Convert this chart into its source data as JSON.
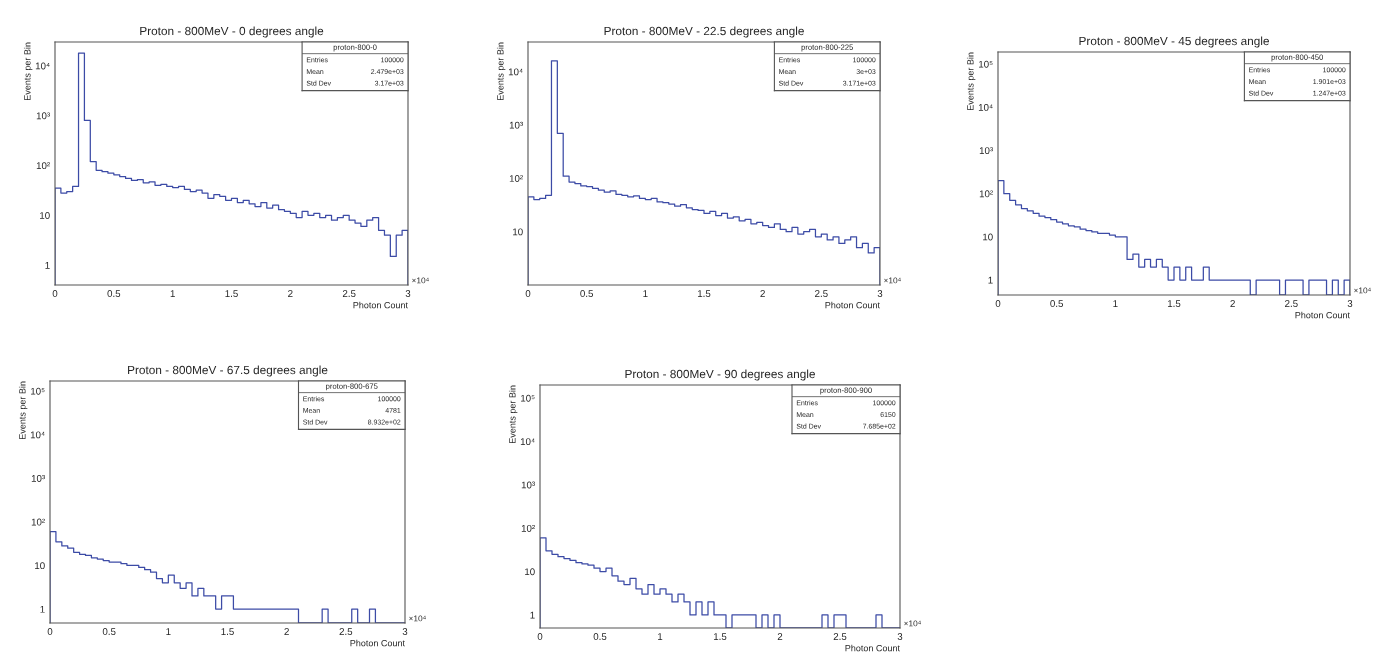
{
  "chart_data": [
    {
      "type": "histogram",
      "title": "Proton - 800MeV - 0 degrees angle",
      "xlabel": "Photon Count",
      "ylabel": "Events per Bin",
      "log": "y",
      "color": "#3c4ba6",
      "bins": [
        0,
        0.05,
        0.1,
        0.15,
        0.2,
        0.25,
        0.3,
        0.35,
        0.4,
        0.45,
        0.5,
        0.55,
        0.6,
        0.65,
        0.7,
        0.75,
        0.8,
        0.85,
        0.9,
        0.95,
        1,
        1.05,
        1.1,
        1.15,
        1.2,
        1.25,
        1.3,
        1.35,
        1.4,
        1.45,
        1.5,
        1.55,
        1.6,
        1.65,
        1.7,
        1.75,
        1.8,
        1.85,
        1.9,
        1.95,
        2,
        2.05,
        2.1,
        2.15,
        2.2,
        2.25,
        2.3,
        2.35,
        2.4,
        2.45,
        2.5,
        2.55,
        2.6,
        2.65,
        2.7,
        2.75,
        2.8,
        2.85,
        2.9,
        2.95,
        3
      ],
      "values": [
        35,
        28,
        30,
        38,
        18000,
        800,
        120,
        80,
        75,
        70,
        65,
        60,
        55,
        50,
        52,
        45,
        47,
        40,
        42,
        38,
        36,
        38,
        33,
        30,
        32,
        28,
        22,
        26,
        24,
        20,
        22,
        18,
        20,
        17,
        15,
        18,
        14,
        16,
        13,
        12,
        11,
        9,
        12,
        10,
        11,
        9,
        10,
        8,
        9,
        10,
        8,
        7,
        6,
        8,
        9,
        5,
        4,
        1.5,
        4,
        5
      ],
      "xlim": [
        0,
        3
      ],
      "xticks": [
        0,
        0.5,
        1,
        1.5,
        2,
        2.5,
        3
      ],
      "ylim": [
        0.4,
        30000
      ],
      "yticks": [
        1,
        10,
        {
          "value": 100,
          "label": "10²"
        },
        {
          "value": 1000,
          "label": "10³"
        },
        {
          "value": 10000,
          "label": "10⁴"
        }
      ],
      "annotations": [
        "proton-800-0",
        "Entries",
        "100000",
        "Mean",
        "2.479e+03",
        "Std Dev",
        "3.17e+03",
        "×10⁴"
      ]
    },
    {
      "type": "histogram",
      "title": "Proton - 800MeV - 22.5 degrees angle",
      "xlabel": "Photon Count",
      "ylabel": "Events per Bin",
      "log": "y",
      "color": "#3c4ba6",
      "bins": [
        0,
        0.05,
        0.1,
        0.15,
        0.2,
        0.25,
        0.3,
        0.35,
        0.4,
        0.45,
        0.5,
        0.55,
        0.6,
        0.65,
        0.7,
        0.75,
        0.8,
        0.85,
        0.9,
        0.95,
        1,
        1.05,
        1.1,
        1.15,
        1.2,
        1.25,
        1.3,
        1.35,
        1.4,
        1.45,
        1.5,
        1.55,
        1.6,
        1.65,
        1.7,
        1.75,
        1.8,
        1.85,
        1.9,
        1.95,
        2,
        2.05,
        2.1,
        2.15,
        2.2,
        2.25,
        2.3,
        2.35,
        2.4,
        2.45,
        2.5,
        2.55,
        2.6,
        2.65,
        2.7,
        2.75,
        2.8,
        2.85,
        2.9,
        2.95,
        3
      ],
      "values": [
        45,
        40,
        42,
        48,
        16000,
        700,
        110,
        85,
        80,
        72,
        70,
        65,
        60,
        55,
        58,
        50,
        48,
        45,
        47,
        42,
        40,
        42,
        36,
        35,
        33,
        30,
        32,
        28,
        26,
        25,
        22,
        24,
        20,
        22,
        18,
        19,
        16,
        17,
        14,
        15,
        13,
        12,
        14,
        11,
        10,
        12,
        9,
        10,
        11,
        8,
        9,
        7,
        8,
        6,
        7,
        8,
        5,
        6,
        4,
        5
      ],
      "xlim": [
        0,
        3
      ],
      "xticks": [
        0,
        0.5,
        1,
        1.5,
        2,
        2.5,
        3
      ],
      "ylim": [
        1,
        36000
      ],
      "yticks": [
        10,
        {
          "value": 100,
          "label": "10²"
        },
        {
          "value": 1000,
          "label": "10³"
        },
        {
          "value": 10000,
          "label": "10⁴"
        }
      ],
      "annotations": [
        "proton-800-225",
        "Entries",
        "100000",
        "Mean",
        "3e+03",
        "Std Dev",
        "3.171e+03",
        "×10⁴"
      ]
    },
    {
      "type": "histogram",
      "title": "Proton - 800MeV - 45 degrees angle",
      "xlabel": "Photon Count",
      "ylabel": "Events per Bin",
      "log": "y",
      "color": "#3c4ba6",
      "bins": [
        0,
        0.05,
        0.1,
        0.15,
        0.2,
        0.25,
        0.3,
        0.35,
        0.4,
        0.45,
        0.5,
        0.55,
        0.6,
        0.65,
        0.7,
        0.75,
        0.8,
        0.85,
        0.9,
        0.95,
        1,
        1.05,
        1.1,
        1.15,
        1.2,
        1.25,
        1.3,
        1.35,
        1.4,
        1.45,
        1.5,
        1.55,
        1.6,
        1.65,
        1.7,
        1.75,
        1.8,
        1.85,
        1.9,
        1.95,
        2,
        2.05,
        2.1,
        2.15,
        2.2,
        2.25,
        2.3,
        2.35,
        2.4,
        2.45,
        2.5,
        2.55,
        2.6,
        2.65,
        2.7,
        2.75,
        2.8,
        2.85,
        2.9,
        2.95,
        3
      ],
      "values": [
        200,
        100,
        70,
        55,
        45,
        40,
        35,
        30,
        28,
        25,
        22,
        20,
        18,
        17,
        15,
        14,
        13,
        12,
        12,
        11,
        10,
        10,
        3,
        4,
        2,
        3,
        2,
        3,
        2,
        1,
        2,
        1,
        2,
        1,
        1,
        2,
        1,
        1,
        1,
        1,
        1,
        1,
        1,
        null,
        1,
        1,
        1,
        1,
        null,
        1,
        1,
        1,
        null,
        1,
        1,
        1,
        null,
        1,
        null,
        1
      ],
      "xlim": [
        0,
        3
      ],
      "xticks": [
        0,
        0.5,
        1,
        1.5,
        2,
        2.5,
        3
      ],
      "ylim": [
        0.45,
        190000
      ],
      "yticks": [
        1,
        10,
        {
          "value": 100,
          "label": "10²"
        },
        {
          "value": 1000,
          "label": "10³"
        },
        {
          "value": 10000,
          "label": "10⁴"
        },
        {
          "value": 100000,
          "label": "10⁵"
        }
      ],
      "annotations": [
        "proton-800-450",
        "Entries",
        "100000",
        "Mean",
        "1.901e+03",
        "Std Dev",
        "1.247e+03",
        "×10⁴"
      ]
    },
    {
      "type": "histogram",
      "title": "Proton - 800MeV - 67.5 degrees angle",
      "xlabel": "Photon Count",
      "ylabel": "Events per Bin",
      "log": "y",
      "color": "#3c4ba6",
      "bins": [
        0,
        0.05,
        0.1,
        0.15,
        0.2,
        0.25,
        0.3,
        0.35,
        0.4,
        0.45,
        0.5,
        0.55,
        0.6,
        0.65,
        0.7,
        0.75,
        0.8,
        0.85,
        0.9,
        0.95,
        1,
        1.05,
        1.1,
        1.15,
        1.2,
        1.25,
        1.3,
        1.35,
        1.4,
        1.45,
        1.5,
        1.55,
        1.6,
        1.65,
        1.7,
        1.75,
        1.8,
        1.85,
        1.9,
        1.95,
        2,
        2.05,
        2.1,
        2.15,
        2.2,
        2.25,
        2.3,
        2.35,
        2.4,
        2.45,
        2.5,
        2.55,
        2.6,
        2.65,
        2.7,
        2.75,
        2.8,
        2.85,
        2.9,
        2.95,
        3
      ],
      "values": [
        60,
        35,
        28,
        25,
        20,
        18,
        17,
        15,
        14,
        13,
        12,
        12,
        11,
        10,
        10,
        9,
        8,
        7,
        5,
        4,
        6,
        4,
        3,
        4,
        2,
        3,
        2,
        2,
        1,
        2,
        2,
        1,
        1,
        1,
        1,
        1,
        1,
        1,
        1,
        1,
        1,
        1,
        null,
        null,
        null,
        null,
        1,
        null,
        null,
        null,
        null,
        1,
        null,
        null,
        1,
        null,
        null,
        null,
        null,
        null
      ],
      "xlim": [
        0,
        3
      ],
      "xticks": [
        0,
        0.5,
        1,
        1.5,
        2,
        2.5,
        3
      ],
      "ylim": [
        0.48,
        170000
      ],
      "yticks": [
        1,
        10,
        {
          "value": 100,
          "label": "10²"
        },
        {
          "value": 1000,
          "label": "10³"
        },
        {
          "value": 10000,
          "label": "10⁴"
        },
        {
          "value": 100000,
          "label": "10⁵"
        }
      ],
      "annotations": [
        "proton-800-675",
        "Entries",
        "100000",
        "Mean",
        "4781",
        "Std Dev",
        "8.932e+02",
        "×10⁴"
      ]
    },
    {
      "type": "histogram",
      "title": "Proton - 800MeV - 90 degrees angle",
      "xlabel": "Photon Count",
      "ylabel": "Events per Bin",
      "log": "y",
      "color": "#3c4ba6",
      "bins": [
        0,
        0.05,
        0.1,
        0.15,
        0.2,
        0.25,
        0.3,
        0.35,
        0.4,
        0.45,
        0.5,
        0.55,
        0.6,
        0.65,
        0.7,
        0.75,
        0.8,
        0.85,
        0.9,
        0.95,
        1,
        1.05,
        1.1,
        1.15,
        1.2,
        1.25,
        1.3,
        1.35,
        1.4,
        1.45,
        1.5,
        1.55,
        1.6,
        1.65,
        1.7,
        1.75,
        1.8,
        1.85,
        1.9,
        1.95,
        2,
        2.05,
        2.1,
        2.15,
        2.2,
        2.25,
        2.3,
        2.35,
        2.4,
        2.45,
        2.5,
        2.55,
        2.6,
        2.65,
        2.7,
        2.75,
        2.8,
        2.85,
        2.9,
        2.95,
        3
      ],
      "values": [
        60,
        30,
        25,
        22,
        20,
        18,
        16,
        15,
        14,
        12,
        10,
        12,
        8,
        6,
        5,
        7,
        4,
        3,
        5,
        3,
        4,
        3,
        2,
        3,
        2,
        1,
        2,
        1,
        2,
        1,
        1,
        null,
        1,
        1,
        1,
        1,
        null,
        1,
        null,
        1,
        null,
        null,
        null,
        null,
        null,
        null,
        null,
        1,
        null,
        1,
        1,
        null,
        null,
        null,
        null,
        null,
        1,
        null,
        null,
        null
      ],
      "xlim": [
        0,
        3
      ],
      "xticks": [
        0,
        0.5,
        1,
        1.5,
        2,
        2.5,
        3
      ],
      "ylim": [
        0.5,
        200000
      ],
      "yticks": [
        1,
        10,
        {
          "value": 100,
          "label": "10²"
        },
        {
          "value": 1000,
          "label": "10³"
        },
        {
          "value": 10000,
          "label": "10⁴"
        },
        {
          "value": 100000,
          "label": "10⁵"
        }
      ],
      "annotations": [
        "proton-800-900",
        "Entries",
        "100000",
        "Mean",
        "6150",
        "Std Dev",
        "7.685e+02",
        "×10⁴"
      ]
    }
  ]
}
